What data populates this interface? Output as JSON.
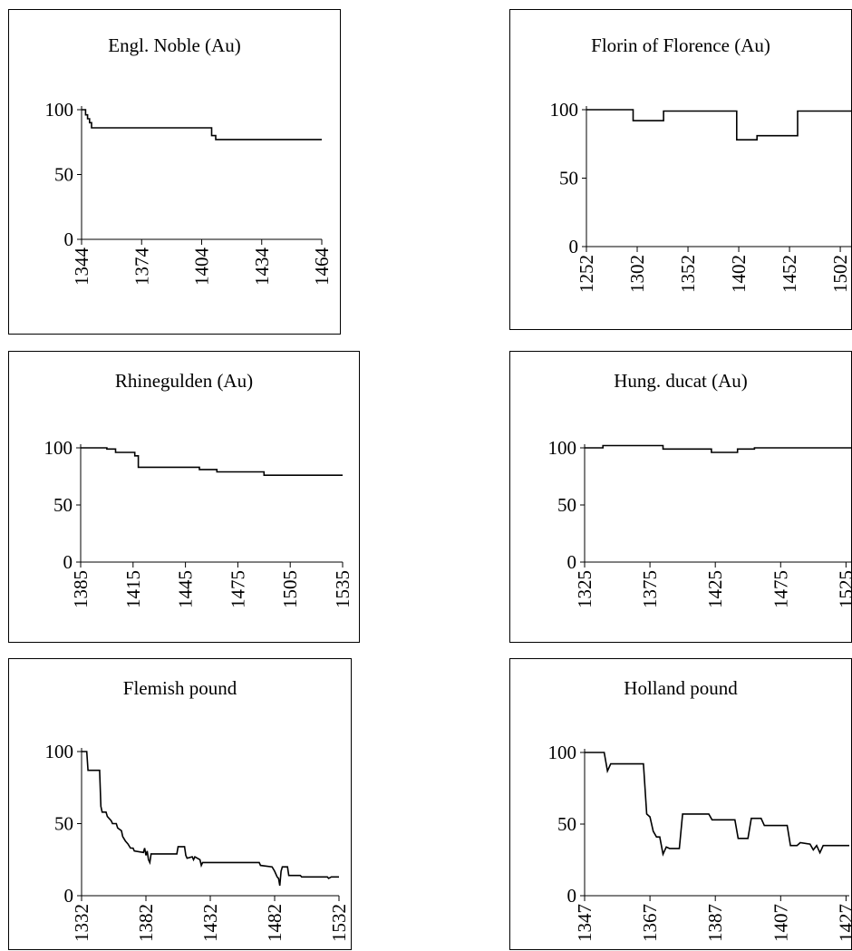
{
  "chart_data": [
    {
      "type": "line",
      "title": "Engl. Noble (Au)",
      "xlabel": "",
      "ylabel": "",
      "xlim": [
        1344,
        1464
      ],
      "ylim": [
        0,
        100
      ],
      "x_ticks": [
        1344,
        1374,
        1404,
        1434,
        1464
      ],
      "y_ticks": [
        0,
        50,
        100
      ],
      "series": [
        {
          "step": true,
          "points": [
            [
              1344,
              100
            ],
            [
              1346,
              96
            ],
            [
              1347,
              93
            ],
            [
              1348,
              90
            ],
            [
              1349,
              86
            ],
            [
              1408,
              86
            ],
            [
              1409,
              80
            ],
            [
              1411,
              77
            ],
            [
              1464,
              77
            ]
          ]
        }
      ]
    },
    {
      "type": "line",
      "title": "Florin of Florence (Au)",
      "xlabel": "",
      "ylabel": "",
      "xlim": [
        1252,
        1518
      ],
      "ylim": [
        0,
        100
      ],
      "x_ticks": [
        1252,
        1302,
        1352,
        1402,
        1452,
        1502
      ],
      "y_ticks": [
        0,
        50,
        100
      ],
      "series": [
        {
          "step": true,
          "points": [
            [
              1252,
              100
            ],
            [
              1298,
              92
            ],
            [
              1328,
              99
            ],
            [
              1400,
              78
            ],
            [
              1420,
              81
            ],
            [
              1460,
              99
            ],
            [
              1516,
              97
            ],
            [
              1518,
              97
            ]
          ]
        }
      ]
    },
    {
      "type": "line",
      "title": "Rhinegulden (Au)",
      "xlabel": "",
      "ylabel": "",
      "xlim": [
        1385,
        1535
      ],
      "ylim": [
        0,
        100
      ],
      "x_ticks": [
        1385,
        1415,
        1445,
        1475,
        1505,
        1535
      ],
      "y_ticks": [
        0,
        50,
        100
      ],
      "series": [
        {
          "step": true,
          "points": [
            [
              1385,
              100
            ],
            [
              1400,
              99
            ],
            [
              1405,
              96
            ],
            [
              1416,
              93
            ],
            [
              1418,
              83
            ],
            [
              1453,
              81
            ],
            [
              1463,
              79
            ],
            [
              1490,
              76
            ],
            [
              1535,
              76
            ]
          ]
        }
      ]
    },
    {
      "type": "line",
      "title": "Hung. ducat (Au)",
      "xlabel": "",
      "ylabel": "",
      "xlim": [
        1325,
        1540
      ],
      "ylim": [
        0,
        100
      ],
      "x_ticks": [
        1325,
        1375,
        1425,
        1475,
        1525
      ],
      "y_ticks": [
        0,
        50,
        100
      ],
      "series": [
        {
          "step": true,
          "points": [
            [
              1325,
              100
            ],
            [
              1339,
              102
            ],
            [
              1385,
              99
            ],
            [
              1422,
              96
            ],
            [
              1442,
              99
            ],
            [
              1455,
              100
            ],
            [
              1540,
              100
            ]
          ]
        }
      ]
    },
    {
      "type": "line",
      "title": "Flemish pound",
      "xlabel": "",
      "ylabel": "",
      "xlim": [
        1332,
        1532
      ],
      "ylim": [
        0,
        100
      ],
      "x_ticks": [
        1332,
        1382,
        1432,
        1482,
        1532
      ],
      "y_ticks": [
        0,
        50,
        100
      ],
      "series": [
        {
          "step": false,
          "points": [
            [
              1332,
              100
            ],
            [
              1336,
              100
            ],
            [
              1337,
              87
            ],
            [
              1346,
              87
            ],
            [
              1347,
              62
            ],
            [
              1348,
              58
            ],
            [
              1351,
              58
            ],
            [
              1352,
              55
            ],
            [
              1355,
              52
            ],
            [
              1356,
              50
            ],
            [
              1359,
              50
            ],
            [
              1360,
              47
            ],
            [
              1363,
              45
            ],
            [
              1364,
              41
            ],
            [
              1366,
              38
            ],
            [
              1368,
              36
            ],
            [
              1370,
              33
            ],
            [
              1372,
              33
            ],
            [
              1373,
              31
            ],
            [
              1380,
              30
            ],
            [
              1381,
              33
            ],
            [
              1382,
              28
            ],
            [
              1383,
              31
            ],
            [
              1384,
              25
            ],
            [
              1385,
              23
            ],
            [
              1386,
              29
            ],
            [
              1406,
              29
            ],
            [
              1407,
              34
            ],
            [
              1412,
              34
            ],
            [
              1413,
              28
            ],
            [
              1414,
              26
            ],
            [
              1418,
              27
            ],
            [
              1419,
              25
            ],
            [
              1420,
              27
            ],
            [
              1424,
              25
            ],
            [
              1425,
              21
            ],
            [
              1426,
              23
            ],
            [
              1470,
              23
            ],
            [
              1471,
              21
            ],
            [
              1480,
              20
            ],
            [
              1482,
              17
            ],
            [
              1484,
              13
            ],
            [
              1485,
              12
            ],
            [
              1486,
              7
            ],
            [
              1487,
              17
            ],
            [
              1488,
              20
            ],
            [
              1492,
              20
            ],
            [
              1493,
              14
            ],
            [
              1502,
              14
            ],
            [
              1503,
              13
            ],
            [
              1523,
              13
            ],
            [
              1524,
              12
            ],
            [
              1526,
              13
            ],
            [
              1532,
              13
            ]
          ]
        }
      ]
    },
    {
      "type": "line",
      "title": "Holland pound",
      "xlabel": "",
      "ylabel": "",
      "xlim": [
        1347,
        1428
      ],
      "ylim": [
        0,
        100
      ],
      "x_ticks": [
        1347,
        1367,
        1387,
        1407,
        1427
      ],
      "y_ticks": [
        0,
        50,
        100
      ],
      "series": [
        {
          "step": false,
          "points": [
            [
              1347,
              100
            ],
            [
              1353,
              100
            ],
            [
              1354,
              87
            ],
            [
              1355,
              92
            ],
            [
              1365,
              92
            ],
            [
              1366,
              57
            ],
            [
              1367,
              55
            ],
            [
              1368,
              45
            ],
            [
              1369,
              41
            ],
            [
              1370,
              41
            ],
            [
              1371,
              29
            ],
            [
              1372,
              34
            ],
            [
              1373,
              33
            ],
            [
              1376,
              33
            ],
            [
              1377,
              57
            ],
            [
              1385,
              57
            ],
            [
              1386,
              53
            ],
            [
              1393,
              53
            ],
            [
              1394,
              40
            ],
            [
              1397,
              40
            ],
            [
              1398,
              54
            ],
            [
              1401,
              54
            ],
            [
              1402,
              49
            ],
            [
              1409,
              49
            ],
            [
              1410,
              35
            ],
            [
              1412,
              35
            ],
            [
              1413,
              37
            ],
            [
              1416,
              36
            ],
            [
              1417,
              32
            ],
            [
              1418,
              35
            ],
            [
              1419,
              30
            ],
            [
              1420,
              35
            ],
            [
              1428,
              35
            ]
          ]
        }
      ]
    }
  ]
}
